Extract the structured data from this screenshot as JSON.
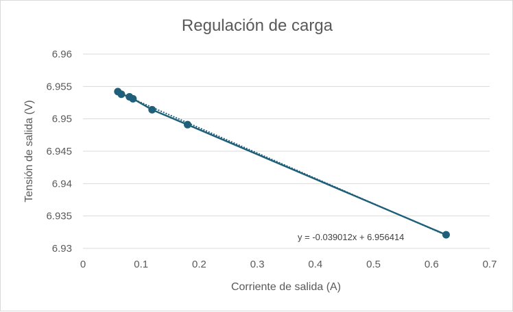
{
  "chart_data": {
    "type": "scatter",
    "title": "Regulación de carga",
    "xlabel": "Corriente de salida (A)",
    "ylabel": "Tensión de salida (V)",
    "xlim": [
      0,
      0.7
    ],
    "ylim": [
      6.93,
      6.96
    ],
    "x_ticks": [
      "0",
      "0.1",
      "0.2",
      "0.3",
      "0.4",
      "0.5",
      "0.6",
      "0.7"
    ],
    "y_ticks": [
      "6.93",
      "6.935",
      "6.94",
      "6.945",
      "6.95",
      "6.955",
      "6.96"
    ],
    "grid": "horizontal",
    "legend": "none",
    "series": [
      {
        "x": [
          0.06,
          0.066,
          0.08,
          0.086,
          0.119,
          0.18,
          0.625
        ],
        "y": [
          6.9542,
          6.9538,
          6.9534,
          6.9531,
          6.9514,
          6.9491,
          6.9321
        ],
        "color": "#1f5f7a"
      }
    ],
    "trendline": {
      "type": "linear",
      "slope": -0.039012,
      "intercept": 6.956414,
      "equation": "y = -0.039012x + 6.956414",
      "style": "dotted",
      "color": "#1f5f7a"
    }
  }
}
